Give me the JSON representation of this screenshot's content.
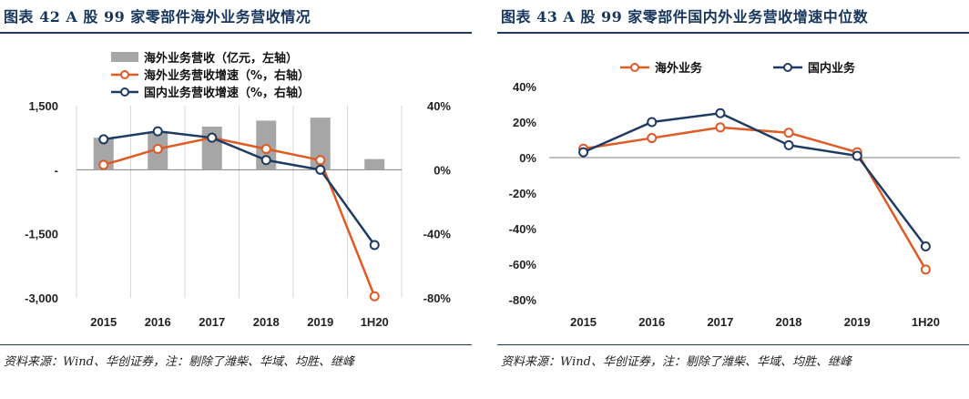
{
  "left": {
    "title": "图表 42 A 股 99 家零部件海外业务营收情况",
    "source": "资料来源：Wind、华创证券，注：剔除了潍柴、华域、均胜、继峰",
    "colors": {
      "bar": "#a6a6a6",
      "overseas": "#e05a24",
      "domestic": "#1f3b63"
    },
    "chart_data": {
      "type": "bar+line",
      "categories": [
        "2015",
        "2016",
        "2017",
        "2018",
        "2019",
        "1H20"
      ],
      "y_left": {
        "ticks": [
          "1,500",
          "-",
          "-1,500",
          "-3,000"
        ],
        "tick_values": [
          1500,
          0,
          -1500,
          -3000
        ],
        "range": [
          -3000,
          1500
        ]
      },
      "y_right": {
        "ticks": [
          "40%",
          "0%",
          "-40%",
          "-80%"
        ],
        "tick_values": [
          40,
          0,
          -40,
          -80
        ],
        "range": [
          -80,
          40
        ]
      },
      "legend": {
        "position": "top",
        "entries": [
          "海外业务营收（亿元，左轴）",
          "海外业务营收增速（%，右轴）",
          "国内业务营收增速（%，右轴）"
        ]
      },
      "series": [
        {
          "name": "海外业务营收（亿元，左轴）",
          "type": "bar",
          "axis": "left",
          "values": [
            750,
            880,
            1010,
            1150,
            1220,
            250
          ]
        },
        {
          "name": "海外业务营收增速（%，右轴）",
          "type": "line",
          "axis": "right",
          "values": [
            3,
            13,
            20,
            13,
            6,
            -79
          ]
        },
        {
          "name": "国内业务营收增速（%，右轴）",
          "type": "line",
          "axis": "right",
          "values": [
            19,
            24,
            20,
            6,
            0,
            -47
          ]
        }
      ]
    }
  },
  "right": {
    "title": "图表 43 A 股 99 家零部件国内外业务营收增速中位数",
    "source": "资料来源：Wind、华创证券，注：剔除了潍柴、华域、均胜、继峰",
    "colors": {
      "overseas": "#e05a24",
      "domestic": "#1f3b63"
    },
    "chart_data": {
      "type": "line",
      "categories": [
        "2015",
        "2016",
        "2017",
        "2018",
        "2019",
        "1H20"
      ],
      "y": {
        "ticks": [
          "40%",
          "20%",
          "0%",
          "-20%",
          "-40%",
          "-60%",
          "-80%"
        ],
        "tick_values": [
          40,
          20,
          0,
          -20,
          -40,
          -60,
          -80
        ],
        "range": [
          -80,
          40
        ]
      },
      "legend": {
        "position": "top",
        "entries": [
          "海外业务",
          "国内业务"
        ]
      },
      "series": [
        {
          "name": "海外业务",
          "values": [
            5,
            11,
            17,
            14,
            3,
            -63
          ]
        },
        {
          "name": "国内业务",
          "values": [
            3,
            20,
            25,
            7,
            1,
            -50
          ]
        }
      ]
    }
  }
}
